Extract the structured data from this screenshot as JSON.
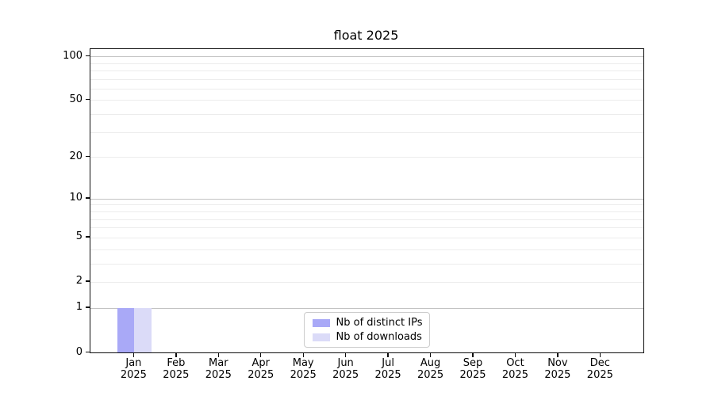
{
  "chart_data": {
    "type": "bar",
    "title": "float 2025",
    "categories": [
      "Jan 2025",
      "Feb 2025",
      "Mar 2025",
      "Apr 2025",
      "May 2025",
      "Jun 2025",
      "Jul 2025",
      "Aug 2025",
      "Sep 2025",
      "Oct 2025",
      "Nov 2025",
      "Dec 2025"
    ],
    "series": [
      {
        "name": "Nb of distinct IPs",
        "color": "#a9a9f7",
        "values": [
          1,
          0,
          0,
          0,
          0,
          0,
          0,
          0,
          0,
          0,
          0,
          0
        ]
      },
      {
        "name": "Nb of downloads",
        "color": "#dbdbf8",
        "values": [
          1,
          0,
          0,
          0,
          0,
          0,
          0,
          0,
          0,
          0,
          0,
          0
        ]
      }
    ],
    "xlabel": "",
    "ylabel": "",
    "yscale": "log1p",
    "ylim": [
      0,
      112
    ],
    "y_axis": {
      "top_value": 112,
      "ticks": [
        {
          "v": 0,
          "label": "0"
        },
        {
          "v": 1,
          "label": "1"
        },
        {
          "v": 2,
          "label": "2"
        },
        {
          "v": 5,
          "label": "5"
        },
        {
          "v": 10,
          "label": "10"
        },
        {
          "v": 20,
          "label": "20"
        },
        {
          "v": 50,
          "label": "50"
        },
        {
          "v": 100,
          "label": "100"
        }
      ],
      "major_gridlines": [
        1,
        10,
        100
      ],
      "minor_gridlines": [
        2,
        3,
        4,
        5,
        6,
        7,
        8,
        9,
        20,
        30,
        40,
        50,
        60,
        70,
        80,
        90
      ]
    },
    "legend": {
      "position": "lower center",
      "entries": [
        "Nb of distinct IPs",
        "Nb of downloads"
      ]
    },
    "grid": "horizontal",
    "colors": {
      "major_grid": "#c3c3c3",
      "minor_grid": "#ececec",
      "spine": "#0d0d0d",
      "text": "#000000",
      "background": "#ffffff"
    }
  }
}
